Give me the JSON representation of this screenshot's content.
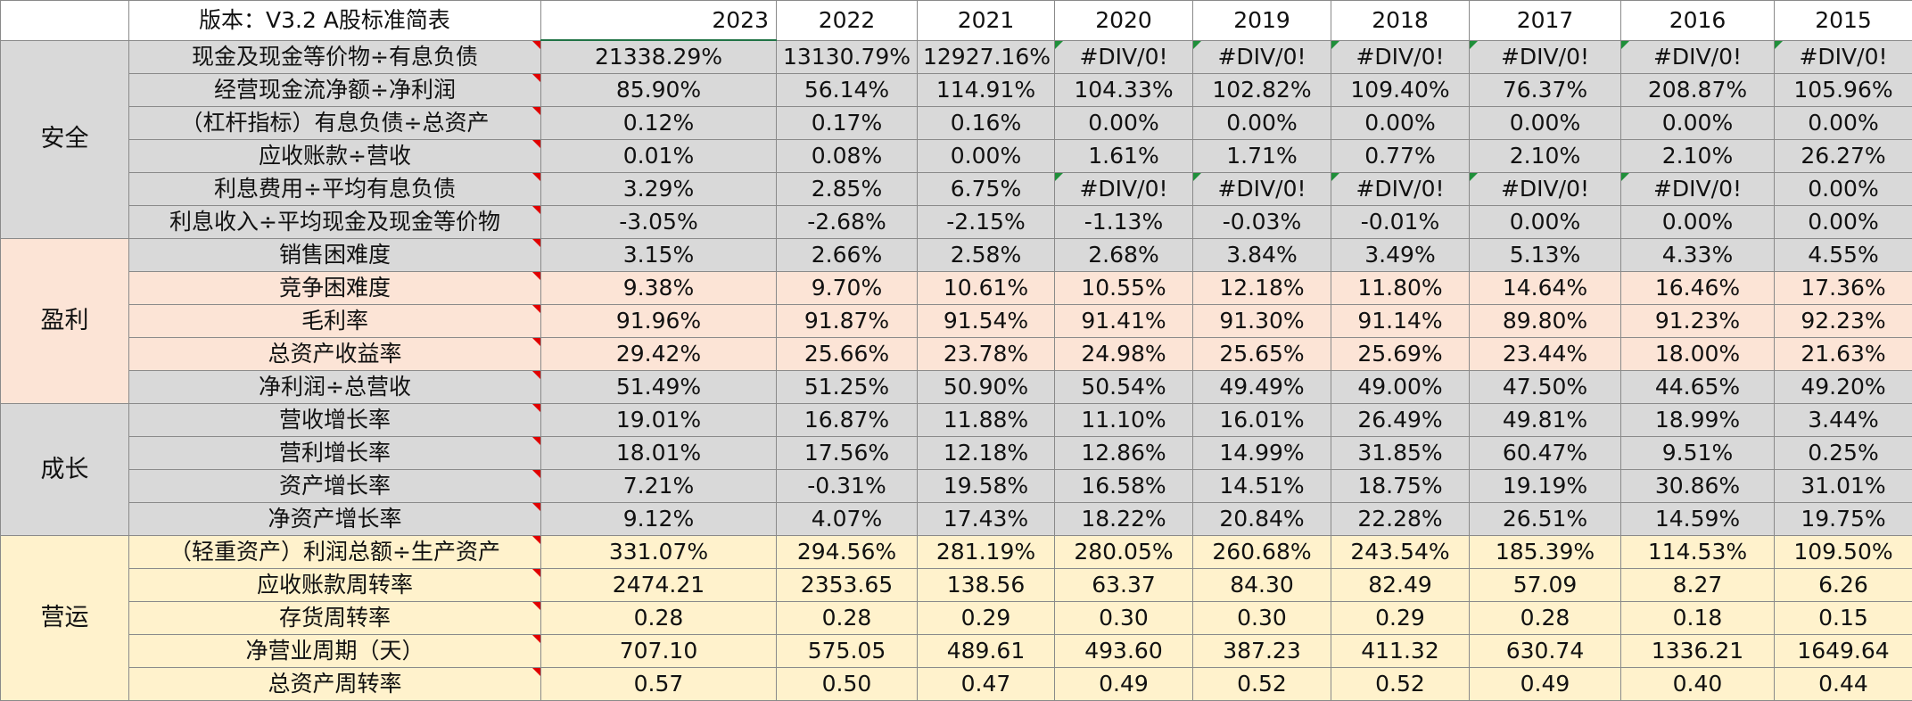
{
  "header": {
    "version": "版本：V3.2 A股标准简表",
    "years": [
      "2023",
      "2022",
      "2021",
      "2020",
      "2019",
      "2018",
      "2017",
      "2016",
      "2015"
    ]
  },
  "sections": [
    {
      "name": "安全",
      "rows": [
        {
          "label": "现金及现金等价物÷有息负债",
          "values": [
            "21338.29%",
            "13130.79%",
            "12927.16%",
            "#DIV/0!",
            "#DIV/0!",
            "#DIV/0!",
            "#DIV/0!",
            "#DIV/0!",
            "#DIV/0!"
          ]
        },
        {
          "label": "经营现金流净额÷净利润",
          "values": [
            "85.90%",
            "56.14%",
            "114.91%",
            "104.33%",
            "102.82%",
            "109.40%",
            "76.37%",
            "208.87%",
            "105.96%"
          ]
        },
        {
          "label": "（杠杆指标）有息负债÷总资产",
          "values": [
            "0.12%",
            "0.17%",
            "0.16%",
            "0.00%",
            "0.00%",
            "0.00%",
            "0.00%",
            "0.00%",
            "0.00%"
          ]
        },
        {
          "label": "应收账款÷营收",
          "values": [
            "0.01%",
            "0.08%",
            "0.00%",
            "1.61%",
            "1.71%",
            "0.77%",
            "2.10%",
            "2.10%",
            "26.27%"
          ]
        },
        {
          "label": "利息费用÷平均有息负债",
          "values": [
            "3.29%",
            "2.85%",
            "6.75%",
            "#DIV/0!",
            "#DIV/0!",
            "#DIV/0!",
            "#DIV/0!",
            "#DIV/0!",
            "0.00%"
          ]
        },
        {
          "label": "利息收入÷平均现金及现金等价物",
          "values": [
            "-3.05%",
            "-2.68%",
            "-2.15%",
            "-1.13%",
            "-0.03%",
            "-0.01%",
            "0.00%",
            "0.00%",
            "0.00%"
          ]
        }
      ]
    },
    {
      "name": "盈利",
      "rows": [
        {
          "label": "销售困难度",
          "values": [
            "3.15%",
            "2.66%",
            "2.58%",
            "2.68%",
            "3.84%",
            "3.49%",
            "5.13%",
            "4.33%",
            "4.55%"
          ]
        },
        {
          "label": "竞争困难度",
          "values": [
            "9.38%",
            "9.70%",
            "10.61%",
            "10.55%",
            "12.18%",
            "11.80%",
            "14.64%",
            "16.46%",
            "17.36%"
          ]
        },
        {
          "label": "毛利率",
          "values": [
            "91.96%",
            "91.87%",
            "91.54%",
            "91.41%",
            "91.30%",
            "91.14%",
            "89.80%",
            "91.23%",
            "92.23%"
          ]
        },
        {
          "label": "总资产收益率",
          "values": [
            "29.42%",
            "25.66%",
            "23.78%",
            "24.98%",
            "25.65%",
            "25.69%",
            "23.44%",
            "18.00%",
            "21.63%"
          ]
        },
        {
          "label": "净利润÷总营收",
          "values": [
            "51.49%",
            "51.25%",
            "50.90%",
            "50.54%",
            "49.49%",
            "49.00%",
            "47.50%",
            "44.65%",
            "49.20%"
          ]
        }
      ]
    },
    {
      "name": "成长",
      "rows": [
        {
          "label": "营收增长率",
          "values": [
            "19.01%",
            "16.87%",
            "11.88%",
            "11.10%",
            "16.01%",
            "26.49%",
            "49.81%",
            "18.99%",
            "3.44%"
          ]
        },
        {
          "label": "营利增长率",
          "values": [
            "18.01%",
            "17.56%",
            "12.18%",
            "12.86%",
            "14.99%",
            "31.85%",
            "60.47%",
            "9.51%",
            "0.25%"
          ]
        },
        {
          "label": "资产增长率",
          "values": [
            "7.21%",
            "-0.31%",
            "19.58%",
            "16.58%",
            "14.51%",
            "18.75%",
            "19.19%",
            "30.86%",
            "31.01%"
          ]
        },
        {
          "label": "净资产增长率",
          "values": [
            "9.12%",
            "4.07%",
            "17.43%",
            "18.22%",
            "20.84%",
            "22.28%",
            "26.51%",
            "14.59%",
            "19.75%"
          ]
        }
      ]
    },
    {
      "name": "营运",
      "rows": [
        {
          "label": "（轻重资产）利润总额÷生产资产",
          "values": [
            "331.07%",
            "294.56%",
            "281.19%",
            "280.05%",
            "260.68%",
            "243.54%",
            "185.39%",
            "114.53%",
            "109.50%"
          ]
        },
        {
          "label": "应收账款周转率",
          "values": [
            "2474.21",
            "2353.65",
            "138.56",
            "63.37",
            "84.30",
            "82.49",
            "57.09",
            "8.27",
            "6.26"
          ]
        },
        {
          "label": "存货周转率",
          "values": [
            "0.28",
            "0.28",
            "0.29",
            "0.30",
            "0.30",
            "0.29",
            "0.28",
            "0.18",
            "0.15"
          ]
        },
        {
          "label": "净营业周期（天）",
          "values": [
            "707.10",
            "575.05",
            "489.61",
            "493.60",
            "387.23",
            "411.32",
            "630.74",
            "1336.21",
            "1649.64"
          ]
        },
        {
          "label": "总资产周转率",
          "values": [
            "0.57",
            "0.50",
            "0.47",
            "0.49",
            "0.52",
            "0.52",
            "0.49",
            "0.40",
            "0.44"
          ]
        }
      ]
    }
  ]
}
